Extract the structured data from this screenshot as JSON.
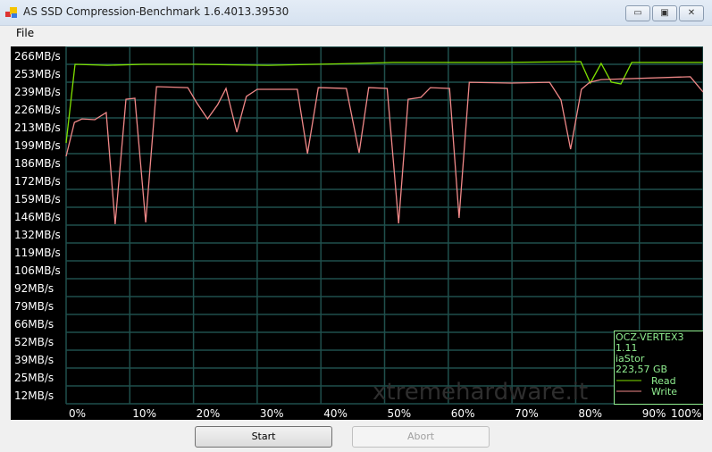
{
  "window": {
    "title": "AS SSD Compression-Benchmark 1.6.4013.39530",
    "minimize": "▭",
    "maximize": "▣",
    "close": "✕"
  },
  "menu": {
    "file": "File"
  },
  "buttons": {
    "start": "Start",
    "abort": "Abort"
  },
  "watermark": "xtremehardware.it",
  "colors": {
    "read": "#7fe000",
    "write": "#f08888",
    "grid": "#1f4f4c",
    "legend_text": "#90ee90"
  },
  "chart_data": {
    "type": "line",
    "ylabel": "",
    "xlabel": "",
    "ylim": [
      12,
      266
    ],
    "xlim": [
      0,
      100
    ],
    "y_ticks": [
      "266MB/s",
      "253MB/s",
      "239MB/s",
      "226MB/s",
      "213MB/s",
      "199MB/s",
      "186MB/s",
      "172MB/s",
      "159MB/s",
      "146MB/s",
      "132MB/s",
      "119MB/s",
      "106MB/s",
      "92MB/s",
      "79MB/s",
      "66MB/s",
      "52MB/s",
      "39MB/s",
      "25MB/s",
      "12MB/s"
    ],
    "x_ticks": [
      "0%",
      "10%",
      "20%",
      "30%",
      "40%",
      "50%",
      "60%",
      "70%",
      "80%",
      "90%",
      "100%"
    ],
    "grid": true,
    "legend_placement": "bottom-right",
    "legend": {
      "drive": "OCZ-VERTEX3",
      "firmware": "1.11",
      "driver": "iaStor",
      "size": "223,57 GB"
    },
    "series": [
      {
        "name": "Read",
        "x": [
          0,
          1.4,
          6.5,
          12.1,
          20.5,
          31.7,
          45.7,
          51.3,
          68.2,
          80.8,
          82.3,
          84.0,
          85.6,
          87.1,
          88.8,
          100
        ],
        "y": [
          200.5,
          259.3,
          258.6,
          259.3,
          259.3,
          258.6,
          260.0,
          260.7,
          260.7,
          261.3,
          245.3,
          260.0,
          246.0,
          244.6,
          260.7,
          260.7
        ]
      },
      {
        "name": "Write",
        "x": [
          0,
          1.3,
          2.5,
          4.5,
          6.3,
          7.7,
          9.4,
          10.8,
          12.5,
          14.2,
          19.1,
          20.5,
          22.2,
          23.8,
          25.1,
          26.8,
          28.3,
          30.0,
          36.3,
          37.9,
          39.6,
          44.0,
          46.0,
          47.5,
          50.4,
          52.2,
          53.7,
          55.7,
          57.2,
          60.2,
          61.7,
          63.3,
          69.8,
          75.9,
          77.7,
          79.2,
          80.9,
          82.2,
          84.0,
          98.0,
          100
        ],
        "y": [
          190.5,
          215.9,
          218.5,
          217.9,
          223.2,
          139.7,
          233.2,
          233.9,
          141.0,
          242.6,
          241.9,
          230.6,
          218.5,
          229.2,
          241.3,
          208.5,
          235.3,
          240.6,
          240.6,
          192.5,
          241.9,
          241.3,
          193.1,
          241.9,
          241.3,
          140.3,
          233.2,
          234.6,
          241.9,
          241.3,
          144.4,
          245.9,
          245.3,
          245.9,
          232.6,
          195.8,
          240.6,
          245.9,
          247.9,
          250.0,
          238.6
        ]
      }
    ]
  }
}
